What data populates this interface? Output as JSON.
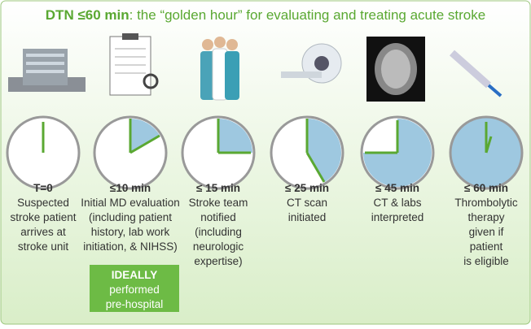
{
  "header": {
    "title_bold": "DTN ≤60 min",
    "title_rest": ": the “golden hour” for evaluating and treating acute stroke"
  },
  "steps": [
    {
      "time": "T=0",
      "lines": [
        "Suspected",
        "stroke patient",
        "arrives at",
        "stroke unit"
      ]
    },
    {
      "time": "≤10 min",
      "lines": [
        "Initial MD evaluation",
        "(including patient",
        "history, lab work",
        "initiation, & NIHSS)"
      ]
    },
    {
      "time": "≤ 15 min",
      "lines": [
        "Stroke team",
        "notified",
        "(including",
        "neurologic",
        "expertise)"
      ]
    },
    {
      "time": "≤ 25 min",
      "lines": [
        "CT scan",
        "initiated"
      ]
    },
    {
      "time": "≤ 45 min",
      "lines": [
        "CT & labs",
        "interpreted"
      ]
    },
    {
      "time": "≤ 60 min",
      "lines": [
        "Thrombolytic",
        "therapy",
        "given if",
        "patient",
        "is eligible"
      ]
    }
  ],
  "note": {
    "lines": [
      "IDEALLY",
      "performed",
      "pre-hospital"
    ]
  }
}
